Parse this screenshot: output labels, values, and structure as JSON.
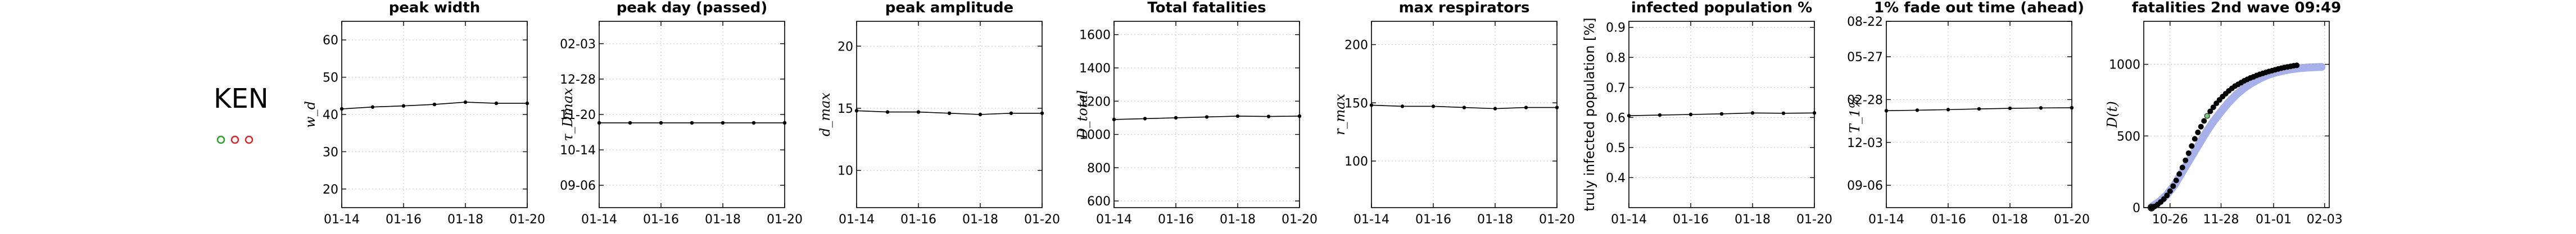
{
  "country": {
    "code": "KEN",
    "markers": [
      {
        "color": "#2ca02c"
      },
      {
        "color": "#d62728"
      },
      {
        "color": "#d62728"
      }
    ]
  },
  "chart_data": [
    {
      "type": "line",
      "title": "peak width",
      "ylabel": "w_d",
      "ylim": [
        15,
        65
      ],
      "yticks": [
        20,
        30,
        40,
        50,
        60
      ],
      "ytick_labels": [
        "20",
        "30",
        "40",
        "50",
        "60"
      ],
      "xlim": [
        0,
        6
      ],
      "xticks": [
        0,
        2,
        4,
        6
      ],
      "xtick_labels": [
        "01-14",
        "01-16",
        "01-18",
        "01-20"
      ],
      "x": [
        0,
        1,
        2,
        3,
        4,
        5,
        6
      ],
      "y": [
        41.5,
        42.0,
        42.3,
        42.7,
        43.3,
        43.0,
        43.0
      ]
    },
    {
      "type": "line",
      "title": "peak day (passed)",
      "ylabel": "τ_Dmax",
      "ylim": [
        0,
        100
      ],
      "yticks": [
        12,
        31,
        50,
        69,
        88
      ],
      "ytick_labels": [
        "09-06",
        "10-14",
        "11-20",
        "12-28",
        "02-03"
      ],
      "xlim": [
        0,
        6
      ],
      "xticks": [
        0,
        2,
        4,
        6
      ],
      "xtick_labels": [
        "01-14",
        "01-16",
        "01-18",
        "01-20"
      ],
      "x": [
        0,
        1,
        2,
        3,
        4,
        5,
        6
      ],
      "y": [
        45.5,
        45.5,
        45.5,
        45.5,
        45.5,
        45.5,
        45.5
      ]
    },
    {
      "type": "line",
      "title": "peak amplitude",
      "ylabel": "d_max",
      "ylim": [
        7,
        22
      ],
      "yticks": [
        10,
        15,
        20
      ],
      "ytick_labels": [
        "10",
        "15",
        "20"
      ],
      "xlim": [
        0,
        6
      ],
      "xticks": [
        0,
        2,
        4,
        6
      ],
      "xtick_labels": [
        "01-14",
        "01-16",
        "01-18",
        "01-20"
      ],
      "x": [
        0,
        1,
        2,
        3,
        4,
        5,
        6
      ],
      "y": [
        14.8,
        14.7,
        14.7,
        14.6,
        14.5,
        14.6,
        14.6
      ]
    },
    {
      "type": "line",
      "title": "Total fatalities",
      "ylabel": "D_total",
      "ylim": [
        560,
        1680
      ],
      "yticks": [
        600,
        800,
        1000,
        1200,
        1400,
        1600
      ],
      "ytick_labels": [
        "600",
        "800",
        "1000",
        "1200",
        "1400",
        "1600"
      ],
      "xlim": [
        0,
        6
      ],
      "xticks": [
        0,
        2,
        4,
        6
      ],
      "xtick_labels": [
        "01-14",
        "01-16",
        "01-18",
        "01-20"
      ],
      "x": [
        0,
        1,
        2,
        3,
        4,
        5,
        6
      ],
      "y": [
        1090,
        1095,
        1100,
        1105,
        1110,
        1108,
        1110
      ]
    },
    {
      "type": "line",
      "title": "max respirators",
      "ylabel": "r_max",
      "ylim": [
        60,
        220
      ],
      "yticks": [
        100,
        150,
        200
      ],
      "ytick_labels": [
        "100",
        "150",
        "200"
      ],
      "xlim": [
        0,
        6
      ],
      "xticks": [
        0,
        2,
        4,
        6
      ],
      "xtick_labels": [
        "01-14",
        "01-16",
        "01-18",
        "01-20"
      ],
      "x": [
        0,
        1,
        2,
        3,
        4,
        5,
        6
      ],
      "y": [
        148,
        147,
        147,
        146,
        145,
        146,
        146
      ]
    },
    {
      "type": "line",
      "title": "infected population %",
      "ylabel": "truly infected population [%]",
      "ylim": [
        0.3,
        0.92
      ],
      "yticks": [
        0.4,
        0.5,
        0.6,
        0.7,
        0.8,
        0.9
      ],
      "ytick_labels": [
        "0.4",
        "0.5",
        "0.6",
        "0.7",
        "0.8",
        "0.9"
      ],
      "xlim": [
        0,
        6
      ],
      "xticks": [
        0,
        2,
        4,
        6
      ],
      "xtick_labels": [
        "01-14",
        "01-16",
        "01-18",
        "01-20"
      ],
      "x": [
        0,
        1,
        2,
        3,
        4,
        5,
        6
      ],
      "y": [
        0.606,
        0.608,
        0.61,
        0.612,
        0.615,
        0.614,
        0.615
      ]
    },
    {
      "type": "line",
      "title": "1% fade out time (ahead)",
      "ylabel": "T_1%",
      "ylim": [
        0,
        100
      ],
      "yticks": [
        12,
        35,
        58,
        81,
        100
      ],
      "ytick_labels": [
        "09-06",
        "12-03",
        "02-28",
        "05-27",
        "08-22"
      ],
      "xlim": [
        0,
        6
      ],
      "xticks": [
        0,
        2,
        4,
        6
      ],
      "xtick_labels": [
        "01-14",
        "01-16",
        "01-18",
        "01-20"
      ],
      "x": [
        0,
        1,
        2,
        3,
        4,
        5,
        6
      ],
      "y": [
        52,
        52.3,
        52.6,
        53,
        53.3,
        53.5,
        53.6
      ]
    },
    {
      "type": "scatter",
      "title": "fatalities 2nd wave 09:49",
      "ylabel": "D(t)",
      "ylim": [
        0,
        1300
      ],
      "yticks": [
        0,
        500,
        1000
      ],
      "ytick_labels": [
        "0",
        "500",
        "1000"
      ],
      "xlim": [
        -5,
        115
      ],
      "xticks": [
        12,
        45,
        79,
        112
      ],
      "xtick_labels": [
        "10-26",
        "11-28",
        "01-01",
        "02-03"
      ],
      "fit_color": "#8a96e0",
      "highlight_color": "#7ec87e",
      "fit_x": [
        0,
        5,
        10,
        15,
        20,
        25,
        30,
        35,
        40,
        45,
        50,
        55,
        60,
        65,
        70,
        75,
        80,
        85,
        90,
        95,
        100,
        105,
        110
      ],
      "fit_y": [
        5,
        40,
        90,
        160,
        250,
        340,
        430,
        520,
        600,
        670,
        735,
        790,
        835,
        870,
        900,
        925,
        942,
        955,
        965,
        972,
        977,
        980,
        982
      ],
      "x": [
        0,
        2,
        4,
        6,
        8,
        10,
        12,
        14,
        16,
        18,
        20,
        22,
        24,
        26,
        28,
        30,
        32,
        34,
        36,
        38,
        40,
        42,
        44,
        46,
        48,
        50,
        52,
        54,
        56,
        58,
        60,
        62,
        64,
        66,
        68,
        70,
        72,
        74,
        76,
        78,
        80,
        82,
        84,
        86,
        88,
        90,
        92,
        94
      ],
      "y": [
        0,
        8,
        22,
        40,
        60,
        85,
        115,
        150,
        190,
        235,
        280,
        330,
        380,
        430,
        480,
        525,
        565,
        605,
        640,
        672,
        700,
        728,
        752,
        775,
        795,
        815,
        832,
        848,
        860,
        872,
        885,
        895,
        905,
        913,
        922,
        930,
        937,
        944,
        950,
        956,
        962,
        968,
        973,
        978,
        982,
        986,
        990,
        993
      ]
    }
  ]
}
